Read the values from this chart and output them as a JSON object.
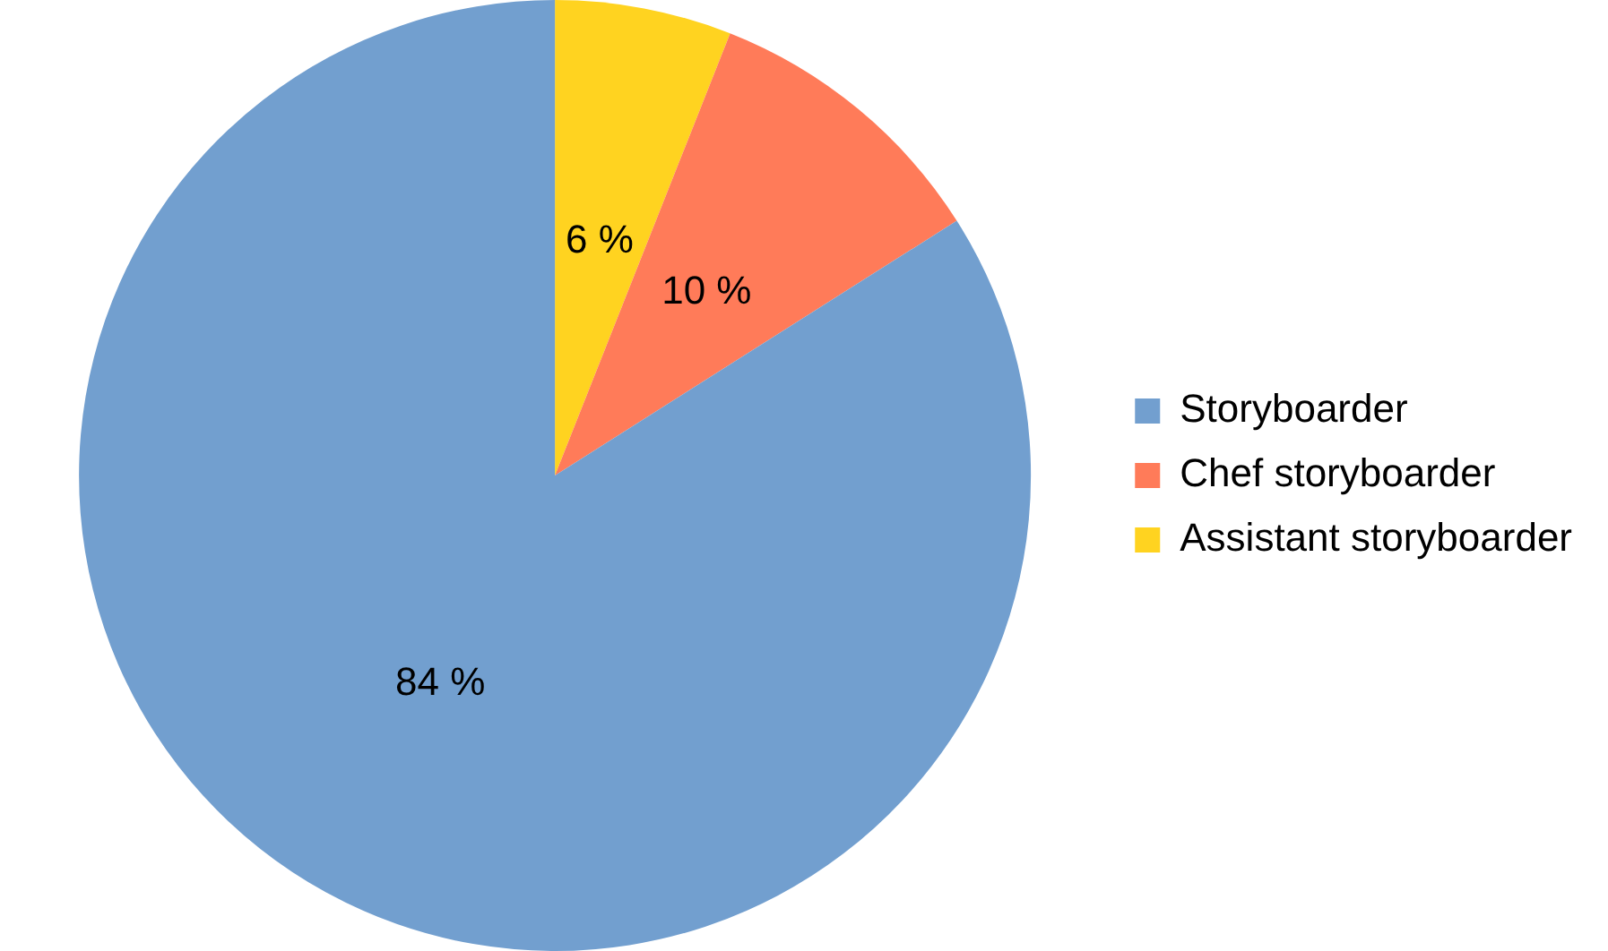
{
  "chart_data": {
    "type": "pie",
    "categories": [
      "Storyboarder",
      "Chef storyboarder",
      "Assistant storyboarder"
    ],
    "values": [
      84,
      10,
      6
    ],
    "colors": [
      "#729fcf",
      "#ff7b59",
      "#ffd320"
    ],
    "value_labels": [
      "84 %",
      "10 %",
      "6 %"
    ],
    "legend": "right"
  }
}
